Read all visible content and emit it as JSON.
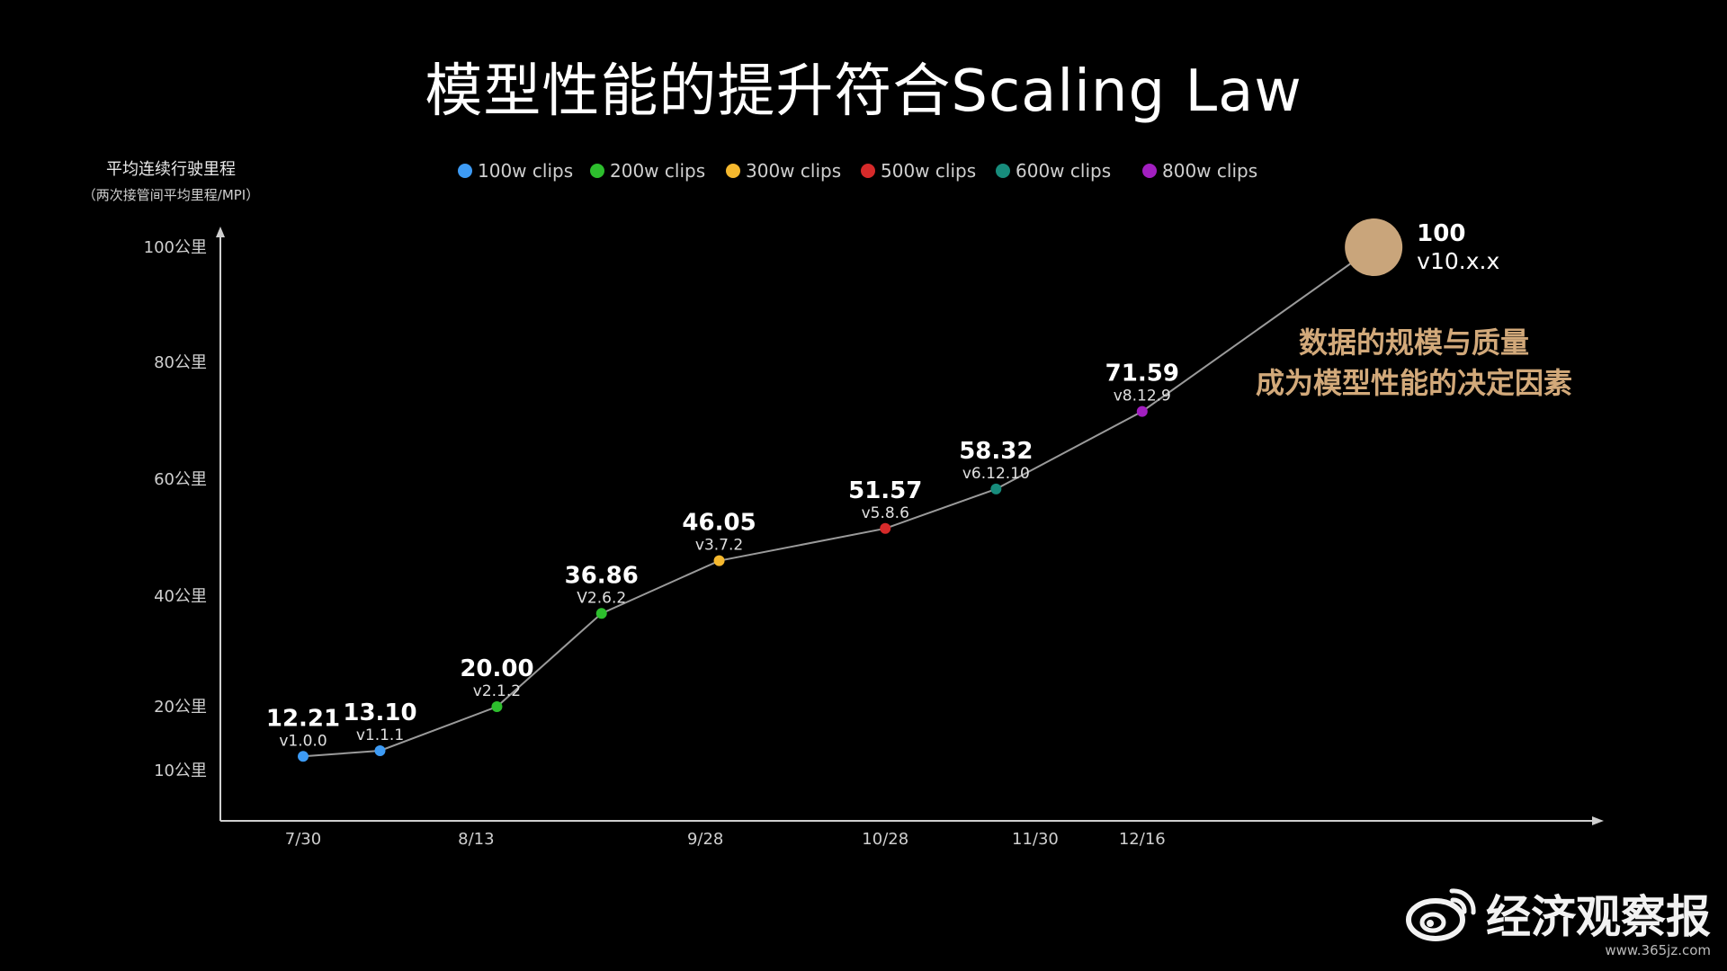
{
  "title": "模型性能的提升符合Scaling Law",
  "watermark": {
    "brand": "经济观察报",
    "url": "www.365jz.com"
  },
  "annotation": {
    "line1": "数据的规模与质量",
    "line2": "成为模型性能的决定因素",
    "color": "#D2A97A"
  },
  "chart_data": {
    "type": "line",
    "ylabel": "平均连续行驶里程",
    "ylabel_sub": "（两次接管间平均里程/MPI）",
    "yticks": [
      {
        "label": "10公里",
        "value": 10
      },
      {
        "label": "20公里",
        "value": 20
      },
      {
        "label": "40公里",
        "value": 40
      },
      {
        "label": "60公里",
        "value": 60
      },
      {
        "label": "80公里",
        "value": 80
      },
      {
        "label": "100公里",
        "value": 100
      }
    ],
    "xticks": [
      {
        "label": "7/30",
        "x": 0
      },
      {
        "label": "8/13",
        "x": 2.25
      },
      {
        "label": "9/28",
        "x": 5.23
      },
      {
        "label": "10/28",
        "x": 7.57
      },
      {
        "label": "11/30",
        "x": 9.52
      },
      {
        "label": "12/16",
        "x": 10.91
      }
    ],
    "legend": [
      {
        "name": "100w clips",
        "color": "#3D9BF5"
      },
      {
        "name": "200w clips",
        "color": "#2DBE2D"
      },
      {
        "name": "300w clips",
        "color": "#F5B82E"
      },
      {
        "name": "500w clips",
        "color": "#D62A2A"
      },
      {
        "name": "600w clips",
        "color": "#178C7C"
      },
      {
        "name": "800w clips",
        "color": "#A21FC0"
      }
    ],
    "legend_position": "top",
    "points": [
      {
        "x": 0,
        "value": 12.21,
        "value_label": "12.21",
        "version": "v1.0.0",
        "series": 0
      },
      {
        "x": 1,
        "value": 13.1,
        "value_label": "13.10",
        "version": "v1.1.1",
        "series": 0
      },
      {
        "x": 2.52,
        "value": 20.0,
        "value_label": "20.00",
        "version": "v2.1.2",
        "series": 1
      },
      {
        "x": 3.88,
        "value": 36.86,
        "value_label": "36.86",
        "version": "V2.6.2",
        "series": 1
      },
      {
        "x": 5.41,
        "value": 46.05,
        "value_label": "46.05",
        "version": "v3.7.2",
        "series": 2
      },
      {
        "x": 7.57,
        "value": 51.57,
        "value_label": "51.57",
        "version": "v5.8.6",
        "series": 3
      },
      {
        "x": 9.01,
        "value": 58.32,
        "value_label": "58.32",
        "version": "v6.12.10",
        "series": 4
      },
      {
        "x": 10.91,
        "value": 71.59,
        "value_label": "71.59",
        "version": "v8.12.9",
        "series": 5
      },
      {
        "x": 13.92,
        "value": 100,
        "value_label": "100",
        "version": "v10.x.x",
        "series": -1,
        "color": "#C9A57B",
        "highlight": true
      }
    ],
    "line_color": "#9A9A9A",
    "grid": false
  }
}
